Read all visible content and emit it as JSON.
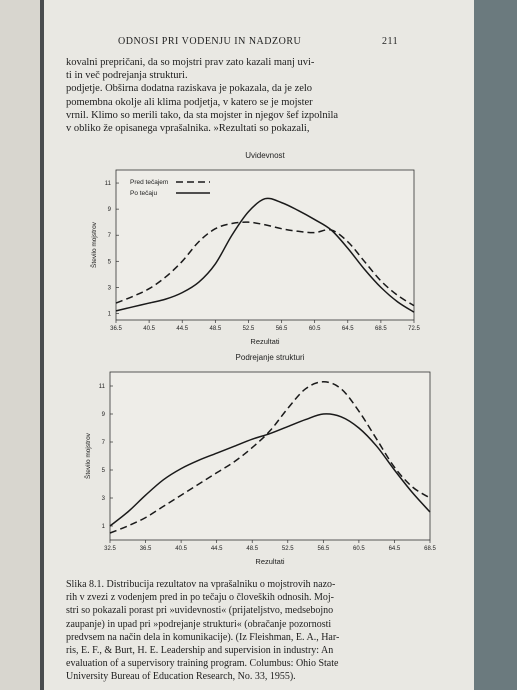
{
  "header": {
    "title": "ODNOSI PRI VODENJU IN NADZORU",
    "page_number": "211"
  },
  "text_lines": [
    "kovalni prepričani, da so mojstri prav zato kazali manj uvi-",
    "ti in več podrejanja strukturi.",
    "podjetje. Obširna dodatna raziskava je pokazala, da je zelo",
    "pomembna okolje ali klima podjetja, v katero se je mojster",
    "vrnil. Klimo so merili tako, da sta mojster in njegov šef izpolnila",
    "v obliko že opisanega vprašalnika. »Rezultati so pokazali,"
  ],
  "caption_lines": [
    "Slika 8.1. Distribucija rezultatov na vprašalniku o mojstrovih nazo-",
    "rih v zvezi z vodenjem pred in po tečaju o človeških odnosih. Moj-",
    "stri so pokazali porast pri »uvidevnosti« (prijateljstvo, medsebojno",
    "zaupanje) in upad pri »podrejanje strukturi« (obračanje pozornosti",
    "predvsem na način dela in komunikacije). (Iz Fleishman, E. A., Har-",
    "ris, E. F., & Burt, H. E. Leadership and supervision in industry: An",
    "evaluation of a supervisory training program. Columbus: Ohio State",
    "University Bureau of Education Research, No. 33, 1955)."
  ],
  "chart_data": [
    {
      "type": "line",
      "title": "Uvidevnost",
      "xlabel": "Rezultati",
      "ylabel": "Število mojstrov",
      "x": [
        36.5,
        38.5,
        40.5,
        42.5,
        44.5,
        46.5,
        48.5,
        50.5,
        52.5,
        54.5,
        56.5,
        58.5,
        60.5,
        62.5,
        64.5,
        66.5,
        68.5,
        70.5,
        72.5
      ],
      "series": [
        {
          "name": "Pred tečajem",
          "color": "#1a1a1a",
          "line_style": "dashed",
          "values": [
            1.8,
            2.3,
            2.9,
            3.8,
            5.0,
            6.5,
            7.5,
            7.9,
            8.0,
            7.8,
            7.5,
            7.3,
            7.2,
            7.4,
            6.5,
            5.0,
            3.5,
            2.4,
            1.6
          ]
        },
        {
          "name": "Po tečaju",
          "color": "#1a1a1a",
          "line_style": "solid",
          "values": [
            1.2,
            1.5,
            1.8,
            2.1,
            2.6,
            3.4,
            4.8,
            7.0,
            8.8,
            9.8,
            9.5,
            8.9,
            8.2,
            7.4,
            6.0,
            4.4,
            3.0,
            1.9,
            1.1
          ]
        }
      ],
      "xlim": [
        36.5,
        72.5
      ],
      "ylim": [
        0.5,
        12
      ],
      "xticks": [
        36.5,
        40.5,
        44.5,
        48.5,
        52.5,
        56.5,
        60.5,
        64.5,
        68.5,
        72.5
      ],
      "yticks": [
        1,
        3,
        5,
        7,
        9,
        11
      ],
      "legend": "upper left"
    },
    {
      "type": "line",
      "title": "Podrejanje strukturi",
      "xlabel": "Rezultati",
      "ylabel": "Število mojstrov",
      "x": [
        32.5,
        34.5,
        36.5,
        38.5,
        40.5,
        42.5,
        44.5,
        46.5,
        48.5,
        50.5,
        52.5,
        54.5,
        56.5,
        58.5,
        60.5,
        62.5,
        64.5,
        66.5,
        68.5
      ],
      "series": [
        {
          "color": "#1a1a1a",
          "line_style": "solid",
          "values": [
            1.0,
            2.0,
            3.2,
            4.3,
            5.1,
            5.7,
            6.2,
            6.7,
            7.2,
            7.6,
            8.1,
            8.6,
            9.0,
            8.8,
            8.0,
            6.7,
            5.0,
            3.4,
            2.0
          ]
        },
        {
          "color": "#1a1a1a",
          "line_style": "dashed",
          "values": [
            0.5,
            1.0,
            1.6,
            2.4,
            3.2,
            4.0,
            4.8,
            5.6,
            6.6,
            7.8,
            9.4,
            10.8,
            11.3,
            10.8,
            9.2,
            7.2,
            5.2,
            3.8,
            3.0
          ]
        }
      ],
      "xlim": [
        32.5,
        68.5
      ],
      "ylim": [
        0,
        12
      ],
      "xticks": [
        32.5,
        36.5,
        40.5,
        44.5,
        48.5,
        52.5,
        56.5,
        60.5,
        64.5,
        68.5
      ],
      "yticks": [
        1,
        3,
        5,
        7,
        9,
        11
      ]
    }
  ]
}
